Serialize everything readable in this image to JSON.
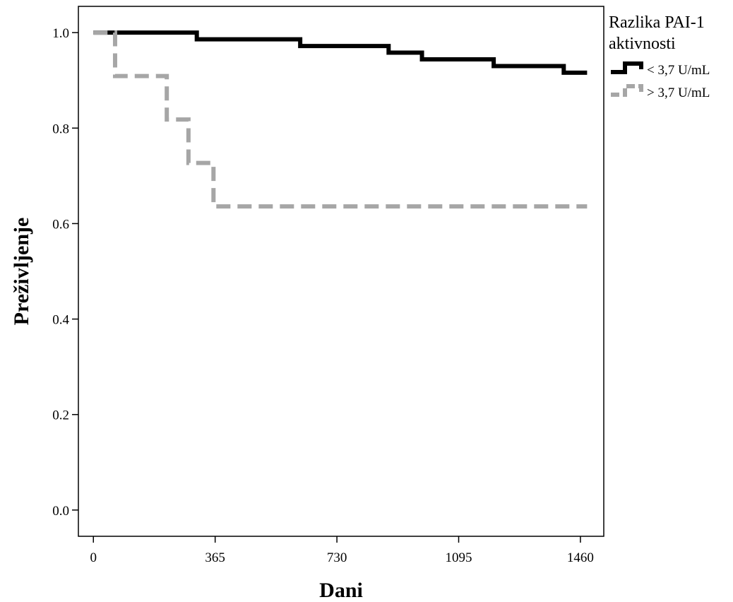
{
  "chart_data": {
    "type": "line",
    "title": "",
    "xlabel": "Dani",
    "ylabel": "Preživljenje",
    "xlim": [
      -45,
      1530
    ],
    "ylim": [
      -0.055,
      1.055
    ],
    "x_ticks": [
      0,
      365,
      730,
      1095,
      1460
    ],
    "x_tick_labels": [
      "0",
      "365",
      "730",
      "1095",
      "1460"
    ],
    "y_ticks": [
      0.0,
      0.2,
      0.4,
      0.6,
      0.8,
      1.0
    ],
    "y_tick_labels": [
      "0.0",
      "0.2",
      "0.4",
      "0.6",
      "0.8",
      "1.0"
    ],
    "grid": false,
    "legend": {
      "title_lines": [
        "Razlika PAI-1",
        "aktivnosti"
      ],
      "position": "outside-top-right"
    },
    "series": [
      {
        "name": "< 3,7 U/mL",
        "style": "solid",
        "color": "#000000",
        "step_points": [
          [
            0,
            1.0
          ],
          [
            310,
            0.986
          ],
          [
            620,
            0.972
          ],
          [
            885,
            0.958
          ],
          [
            985,
            0.944
          ],
          [
            1200,
            0.93
          ],
          [
            1410,
            0.916
          ],
          [
            1480,
            0.916
          ]
        ]
      },
      {
        "name": "> 3,7 U/mL",
        "style": "dashed",
        "color": "#a6a6a6",
        "step_points": [
          [
            0,
            1.0
          ],
          [
            65,
            0.909
          ],
          [
            220,
            0.818
          ],
          [
            285,
            0.727
          ],
          [
            360,
            0.636
          ],
          [
            1480,
            0.636
          ]
        ]
      }
    ]
  }
}
